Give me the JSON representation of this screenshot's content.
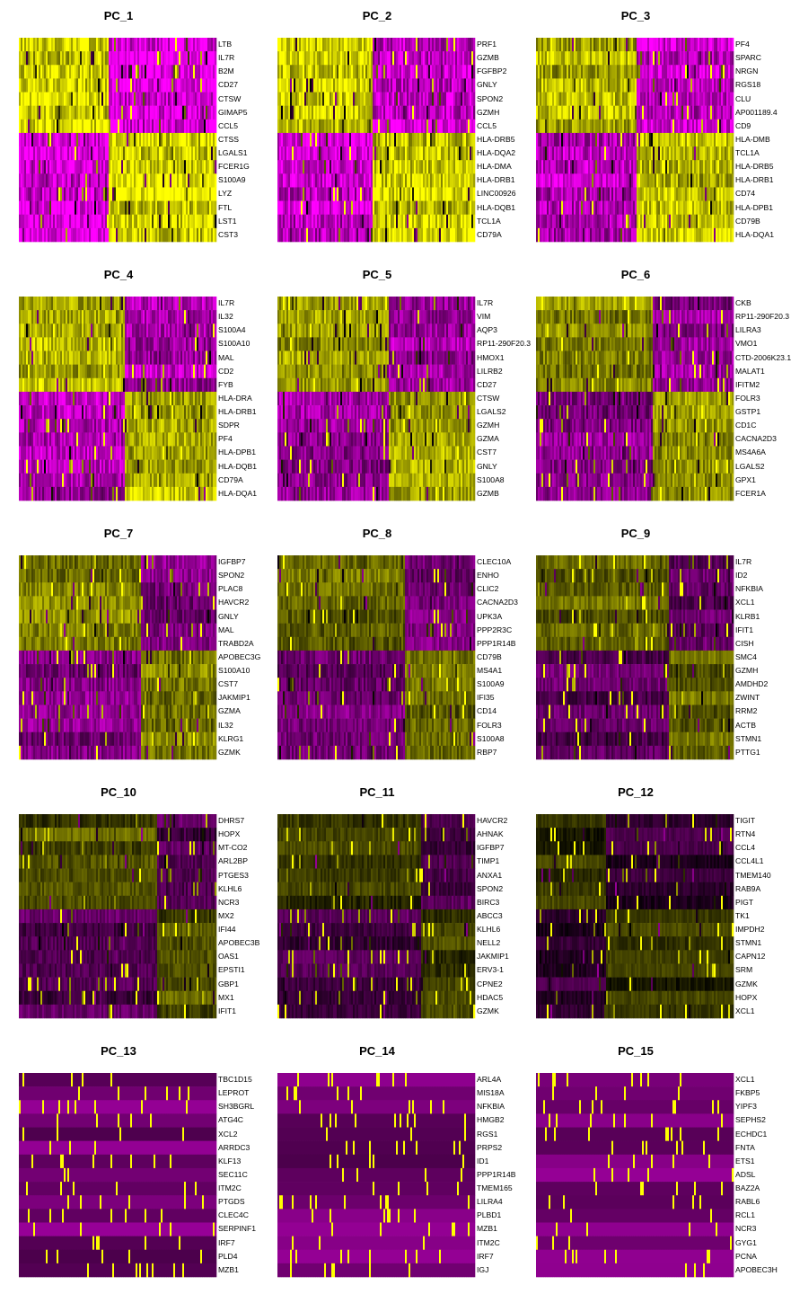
{
  "figure": {
    "colors": {
      "low": "#FF00FF",
      "mid": "#000000",
      "high": "#FFFF00",
      "base": "#6b006b"
    }
  },
  "chart_data": [
    {
      "type": "heatmap",
      "title": "PC_1",
      "genes": [
        "LTB",
        "IL7R",
        "B2M",
        "CD27",
        "CTSW",
        "GIMAP5",
        "CCL5",
        "CTSS",
        "LGALS1",
        "FCER1G",
        "S100A9",
        "LYZ",
        "FTL",
        "LST1",
        "CST3"
      ]
    },
    {
      "type": "heatmap",
      "title": "PC_2",
      "genes": [
        "PRF1",
        "GZMB",
        "FGFBP2",
        "GNLY",
        "SPON2",
        "GZMH",
        "CCL5",
        "HLA-DRB5",
        "HLA-DQA2",
        "HLA-DMA",
        "HLA-DRB1",
        "LINC00926",
        "HLA-DQB1",
        "TCL1A",
        "CD79A"
      ]
    },
    {
      "type": "heatmap",
      "title": "PC_3",
      "genes": [
        "PF4",
        "SPARC",
        "NRGN",
        "RGS18",
        "CLU",
        "AP001189.4",
        "CD9",
        "HLA-DMB",
        "TCL1A",
        "HLA-DRB5",
        "HLA-DRB1",
        "CD74",
        "HLA-DPB1",
        "CD79B",
        "HLA-DQA1"
      ]
    },
    {
      "type": "heatmap",
      "title": "PC_4",
      "genes": [
        "IL7R",
        "IL32",
        "S100A4",
        "S100A10",
        "MAL",
        "CD2",
        "FYB",
        "HLA-DRA",
        "HLA-DRB1",
        "SDPR",
        "PF4",
        "HLA-DPB1",
        "HLA-DQB1",
        "CD79A",
        "HLA-DQA1"
      ]
    },
    {
      "type": "heatmap",
      "title": "PC_5",
      "genes": [
        "IL7R",
        "VIM",
        "AQP3",
        "RP11-290F20.3",
        "HMOX1",
        "LILRB2",
        "CD27",
        "CTSW",
        "LGALS2",
        "GZMH",
        "GZMA",
        "CST7",
        "GNLY",
        "S100A8",
        "GZMB"
      ]
    },
    {
      "type": "heatmap",
      "title": "PC_6",
      "genes": [
        "CKB",
        "RP11-290F20.3",
        "LILRA3",
        "VMO1",
        "CTD-2006K23.1",
        "MALAT1",
        "IFITM2",
        "FOLR3",
        "GSTP1",
        "CD1C",
        "CACNA2D3",
        "MS4A6A",
        "LGALS2",
        "GPX1",
        "FCER1A"
      ]
    },
    {
      "type": "heatmap",
      "title": "PC_7",
      "genes": [
        "IGFBP7",
        "SPON2",
        "PLAC8",
        "HAVCR2",
        "GNLY",
        "MAL",
        "TRABD2A",
        "APOBEC3G",
        "S100A10",
        "CST7",
        "JAKMIP1",
        "GZMA",
        "IL32",
        "KLRG1",
        "GZMK"
      ]
    },
    {
      "type": "heatmap",
      "title": "PC_8",
      "genes": [
        "CLEC10A",
        "ENHO",
        "CLIC2",
        "CACNA2D3",
        "UPK3A",
        "PPP2R3C",
        "PPP1R14B",
        "CD79B",
        "MS4A1",
        "S100A9",
        "IFI35",
        "CD14",
        "FOLR3",
        "S100A8",
        "RBP7"
      ]
    },
    {
      "type": "heatmap",
      "title": "PC_9",
      "genes": [
        "IL7R",
        "ID2",
        "NFKBIA",
        "XCL1",
        "KLRB1",
        "IFIT1",
        "CISH",
        "SMC4",
        "GZMH",
        "AMDHD2",
        "ZWINT",
        "RRM2",
        "ACTB",
        "STMN1",
        "PTTG1"
      ]
    },
    {
      "type": "heatmap",
      "title": "PC_10",
      "genes": [
        "DHRS7",
        "HOPX",
        "MT-CO2",
        "ARL2BP",
        "PTGES3",
        "KLHL6",
        "NCR3",
        "MX2",
        "IFI44",
        "APOBEC3B",
        "OAS1",
        "EPSTI1",
        "GBP1",
        "MX1",
        "IFIT1"
      ]
    },
    {
      "type": "heatmap",
      "title": "PC_11",
      "genes": [
        "HAVCR2",
        "AHNAK",
        "IGFBP7",
        "TIMP1",
        "ANXA1",
        "SPON2",
        "BIRC3",
        "ABCC3",
        "KLHL6",
        "NELL2",
        "JAKMIP1",
        "ERV3-1",
        "CPNE2",
        "HDAC5",
        "GZMK"
      ]
    },
    {
      "type": "heatmap",
      "title": "PC_12",
      "genes": [
        "TIGIT",
        "RTN4",
        "CCL4",
        "CCL4L1",
        "TMEM140",
        "RAB9A",
        "PIGT",
        "TK1",
        "IMPDH2",
        "STMN1",
        "CAPN12",
        "SRM",
        "GZMK",
        "HOPX",
        "XCL1"
      ]
    },
    {
      "type": "heatmap",
      "title": "PC_13",
      "genes": [
        "TBC1D15",
        "LEPROT",
        "SH3BGRL",
        "ATG4C",
        "XCL2",
        "ARRDC3",
        "KLF13",
        "SEC11C",
        "ITM2C",
        "PTGDS",
        "CLEC4C",
        "SERPINF1",
        "IRF7",
        "PLD4",
        "MZB1"
      ]
    },
    {
      "type": "heatmap",
      "title": "PC_14",
      "genes": [
        "ARL4A",
        "MIS18A",
        "NFKBIA",
        "HMGB2",
        "RGS1",
        "PRPS2",
        "ID1",
        "PPP1R14B",
        "TMEM165",
        "LILRA4",
        "PLBD1",
        "MZB1",
        "ITM2C",
        "IRF7",
        "IGJ"
      ]
    },
    {
      "type": "heatmap",
      "title": "PC_15",
      "genes": [
        "XCL1",
        "FKBP5",
        "YIPF3",
        "SEPHS2",
        "ECHDC1",
        "FNTA",
        "ETS1",
        "ADSL",
        "BAZ2A",
        "RABL6",
        "RCL1",
        "NCR3",
        "GYG1",
        "PCNA",
        "APOBEC3H"
      ]
    }
  ]
}
